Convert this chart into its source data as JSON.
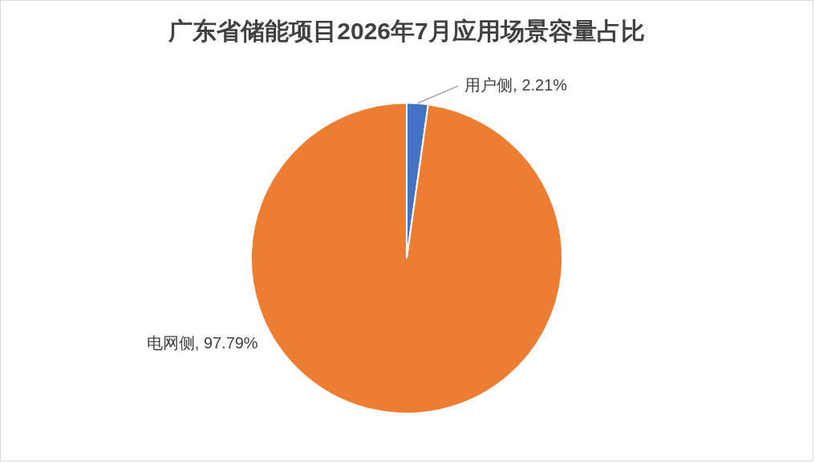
{
  "chart_data": {
    "type": "pie",
    "title": "广东省储能项目2026年7月应用场景容量占比",
    "categories": [
      "用户侧",
      "电网侧"
    ],
    "values": [
      2.21,
      97.79
    ],
    "colors": [
      "#4472c4",
      "#ed7d31"
    ],
    "value_labels": [
      "2.21%",
      "97.79%"
    ],
    "legend": false
  }
}
